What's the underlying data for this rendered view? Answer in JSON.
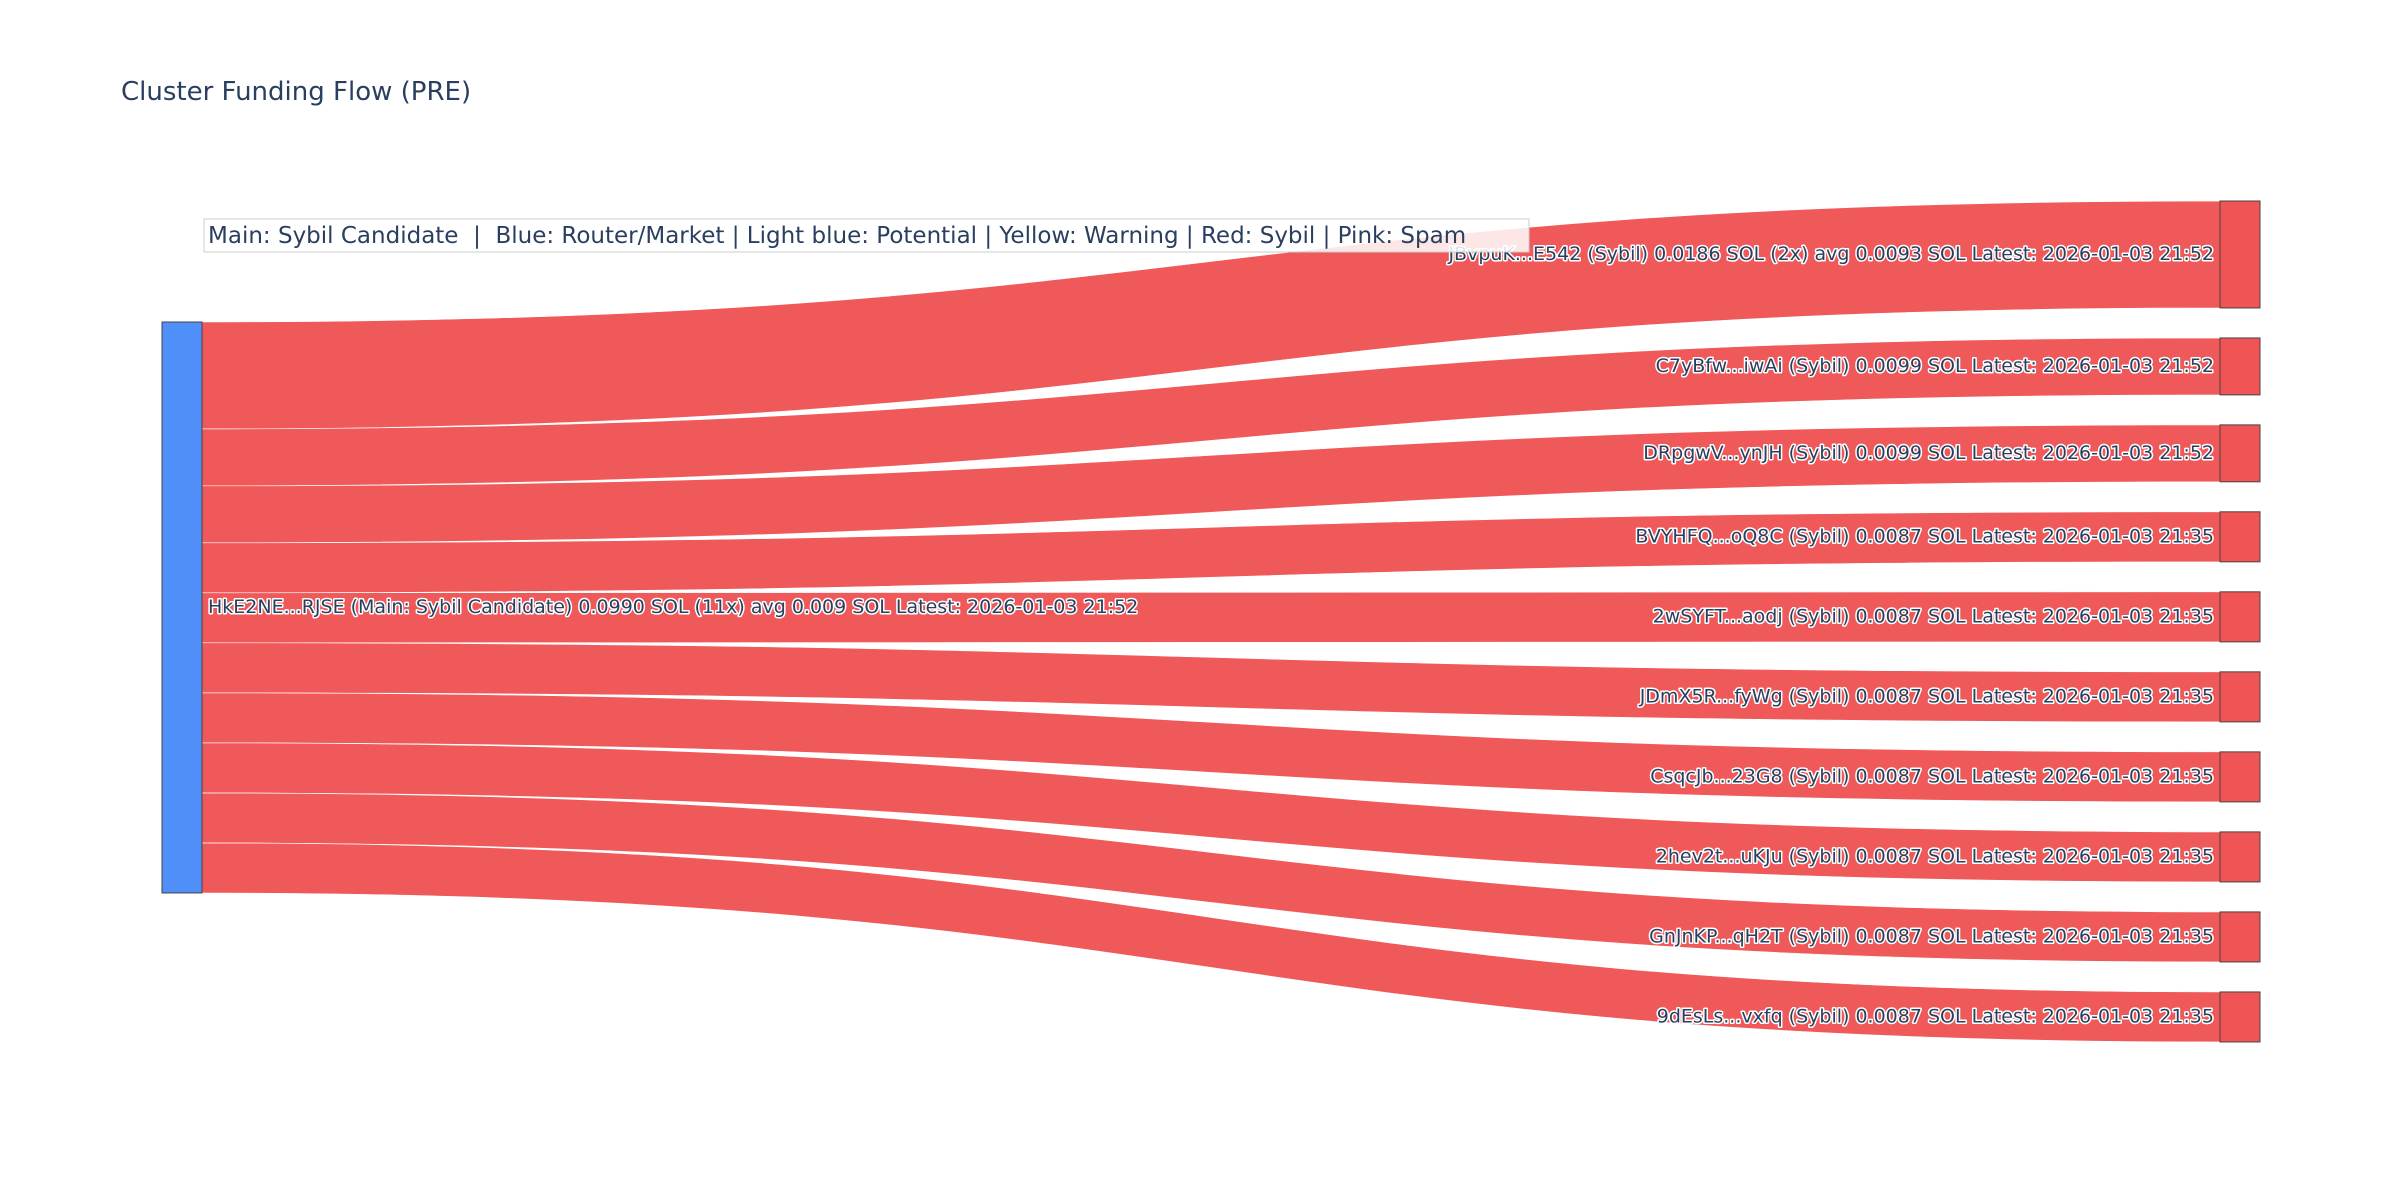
{
  "chart_data": {
    "type": "sankey",
    "title": "Cluster Funding Flow (PRE)",
    "legend_note": "Main: Sybil Candidate  |  Blue: Router/Market | Light blue: Potential | Yellow: Warning | Red: Sybil | Pink: Spam",
    "colors": {
      "source_node": "#4f8ff7",
      "target_node": "#f05454",
      "link": "#f05454",
      "text": "#2a3f5f"
    },
    "source": {
      "label": "HkE2NE...RJSE (Main: Sybil Candidate) 0.0990 SOL (11x) avg 0.009 SOL Latest: 2026-01-03 21:52",
      "value": 0.099
    },
    "targets": [
      {
        "label": "JBvpuK...E542 (Sybil) 0.0186 SOL (2x) avg 0.0093 SOL Latest: 2026-01-03 21:52",
        "value": 0.0186
      },
      {
        "label": "C7yBfw...iwAi (Sybil) 0.0099 SOL Latest: 2026-01-03 21:52",
        "value": 0.0099
      },
      {
        "label": "DRpgwV...ynJH (Sybil) 0.0099 SOL Latest: 2026-01-03 21:52",
        "value": 0.0099
      },
      {
        "label": "BVYHFQ...oQ8C (Sybil) 0.0087 SOL Latest: 2026-01-03 21:35",
        "value": 0.0087
      },
      {
        "label": "2wSYFT...aodj (Sybil) 0.0087 SOL Latest: 2026-01-03 21:35",
        "value": 0.0087
      },
      {
        "label": "JDmX5R...fyWg (Sybil) 0.0087 SOL Latest: 2026-01-03 21:35",
        "value": 0.0087
      },
      {
        "label": "CsqcJb...23G8 (Sybil) 0.0087 SOL Latest: 2026-01-03 21:35",
        "value": 0.0087
      },
      {
        "label": "2hev2t...uKJu (Sybil) 0.0087 SOL Latest: 2026-01-03 21:35",
        "value": 0.0087
      },
      {
        "label": "GnJnKP...qH2T (Sybil) 0.0087 SOL Latest: 2026-01-03 21:35",
        "value": 0.0087
      },
      {
        "label": "9dEsLs...vxfq (Sybil) 0.0087 SOL Latest: 2026-01-03 21:35",
        "value": 0.0087
      }
    ]
  }
}
